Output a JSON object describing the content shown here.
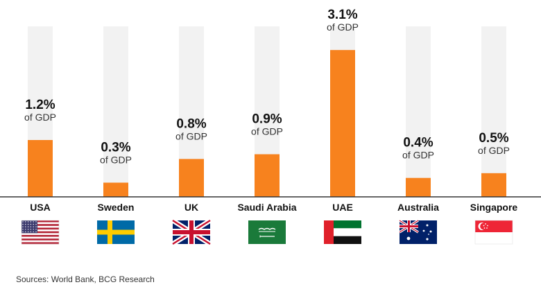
{
  "chart_data": {
    "type": "bar",
    "categories": [
      "USA",
      "Sweden",
      "UK",
      "Saudi Arabia",
      "UAE",
      "Australia",
      "Singapore"
    ],
    "values": [
      1.2,
      0.3,
      0.8,
      0.9,
      3.1,
      0.4,
      0.5
    ],
    "value_labels": [
      "1.2%",
      "0.3%",
      "0.8%",
      "0.9%",
      "3.1%",
      "0.4%",
      "0.5%"
    ],
    "unit_label": "of GDP",
    "flags": [
      "usa-flag-icon",
      "sweden-flag-icon",
      "uk-flag-icon",
      "saudi-arabia-flag-icon",
      "uae-flag-icon",
      "australia-flag-icon",
      "singapore-flag-icon"
    ],
    "ylim": [
      0,
      3.6
    ],
    "colors": {
      "bar": "#f7821e",
      "track": "#f2f2f2",
      "baseline": "#333333"
    }
  },
  "source": "Sources: World Bank, BCG Research"
}
